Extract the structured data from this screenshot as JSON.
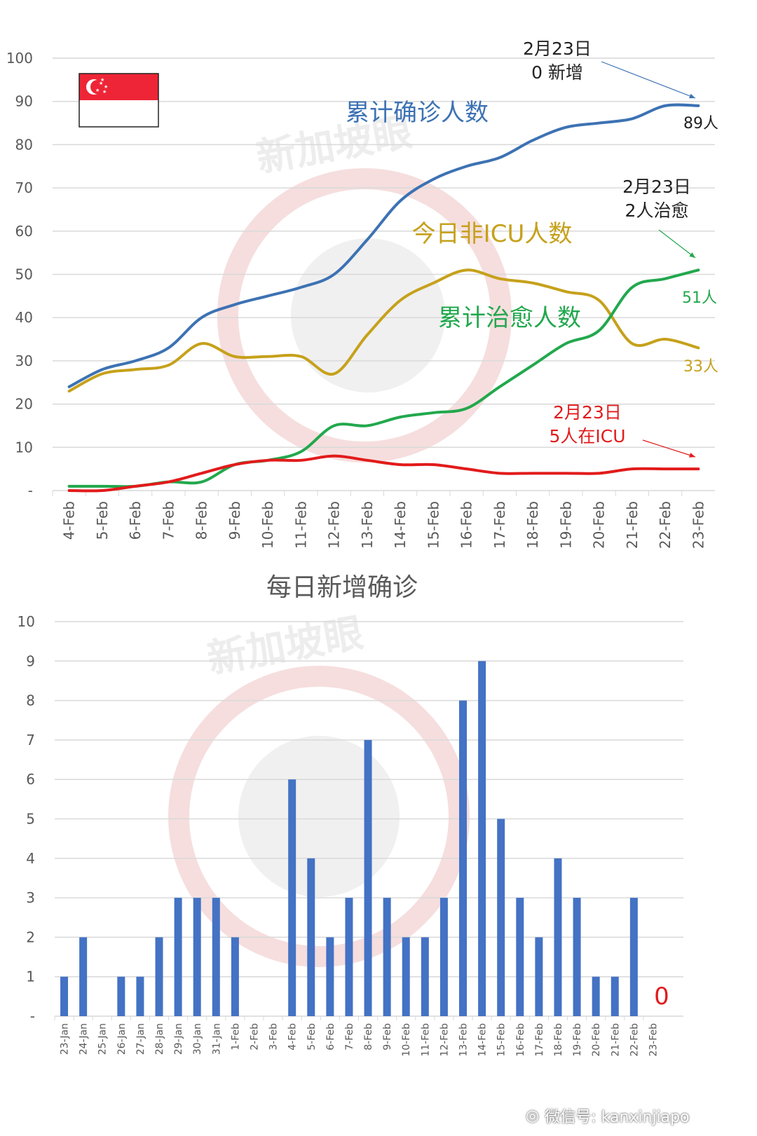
{
  "watermark_text": "新加坡眼",
  "footer": {
    "icon": "wechat-icon",
    "text": "微信号: kanxinjiapo"
  },
  "colors": {
    "cumulative": "#3d72b4",
    "non_icu": "#c6a11b",
    "recovered": "#22a84d",
    "icu": "#e21b1b",
    "bars": "#4472c4",
    "grid": "#d9d9d9",
    "flag_red": "#ee2536"
  },
  "chart_data": [
    {
      "type": "line",
      "y_ticks": [
        "100",
        "90",
        "80",
        "70",
        "60",
        "50",
        "40",
        "30",
        "20",
        "10",
        "-"
      ],
      "ylim": [
        0,
        100
      ],
      "grid": true,
      "categories": [
        "4-Feb",
        "5-Feb",
        "6-Feb",
        "7-Feb",
        "8-Feb",
        "9-Feb",
        "10-Feb",
        "11-Feb",
        "12-Feb",
        "13-Feb",
        "14-Feb",
        "15-Feb",
        "16-Feb",
        "17-Feb",
        "18-Feb",
        "19-Feb",
        "20-Feb",
        "21-Feb",
        "22-Feb",
        "23-Feb"
      ],
      "series": [
        {
          "key": "cumulative",
          "name": "累计确诊人数",
          "end_label": "89人",
          "values": [
            24,
            28,
            30,
            33,
            40,
            43,
            45,
            47,
            50,
            58,
            67,
            72,
            75,
            77,
            81,
            84,
            85,
            86,
            89,
            89
          ]
        },
        {
          "key": "non_icu",
          "name": "今日非ICU人数",
          "end_label": "33人",
          "values": [
            23,
            27,
            28,
            29,
            34,
            31,
            31,
            31,
            27,
            36,
            44,
            48,
            51,
            49,
            48,
            46,
            44,
            34,
            35,
            33
          ]
        },
        {
          "key": "recovered",
          "name": "累计治愈人数",
          "end_label": "51人",
          "values": [
            1,
            1,
            1,
            2,
            2,
            6,
            7,
            9,
            15,
            15,
            17,
            18,
            19,
            24,
            29,
            34,
            37,
            47,
            49,
            51
          ]
        },
        {
          "key": "icu",
          "name": "",
          "end_label": "",
          "values": [
            0,
            0,
            1,
            2,
            4,
            6,
            7,
            7,
            8,
            7,
            6,
            6,
            5,
            4,
            4,
            4,
            4,
            5,
            5,
            5
          ]
        }
      ],
      "annotations": [
        {
          "key": "cumulative",
          "line1": "2月23日",
          "line2": "0 新增"
        },
        {
          "key": "recovered",
          "line1": "2月23日",
          "line2": "2人治愈"
        },
        {
          "key": "icu",
          "line1": "2月23日",
          "line2": "5人在ICU"
        }
      ],
      "flag": "singapore-flag"
    },
    {
      "type": "bar",
      "title": "每日新增确诊",
      "y_ticks": [
        "10",
        "9",
        "8",
        "7",
        "6",
        "5",
        "4",
        "3",
        "2",
        "1",
        "-"
      ],
      "ylim": [
        0,
        10
      ],
      "grid": true,
      "categories": [
        "23-Jan",
        "24-Jan",
        "25-Jan",
        "26-Jan",
        "27-Jan",
        "28-Jan",
        "29-Jan",
        "30-Jan",
        "31-Jan",
        "1-Feb",
        "2-Feb",
        "3-Feb",
        "4-Feb",
        "5-Feb",
        "6-Feb",
        "7-Feb",
        "8-Feb",
        "9-Feb",
        "10-Feb",
        "11-Feb",
        "12-Feb",
        "13-Feb",
        "14-Feb",
        "15-Feb",
        "16-Feb",
        "17-Feb",
        "18-Feb",
        "19-Feb",
        "20-Feb",
        "21-Feb",
        "22-Feb",
        "23-Feb"
      ],
      "values": [
        1,
        2,
        0,
        1,
        1,
        2,
        3,
        3,
        3,
        2,
        0,
        0,
        6,
        4,
        2,
        3,
        7,
        3,
        2,
        2,
        3,
        8,
        9,
        5,
        3,
        2,
        4,
        3,
        1,
        1,
        3,
        0
      ],
      "zero_label": "0"
    }
  ]
}
